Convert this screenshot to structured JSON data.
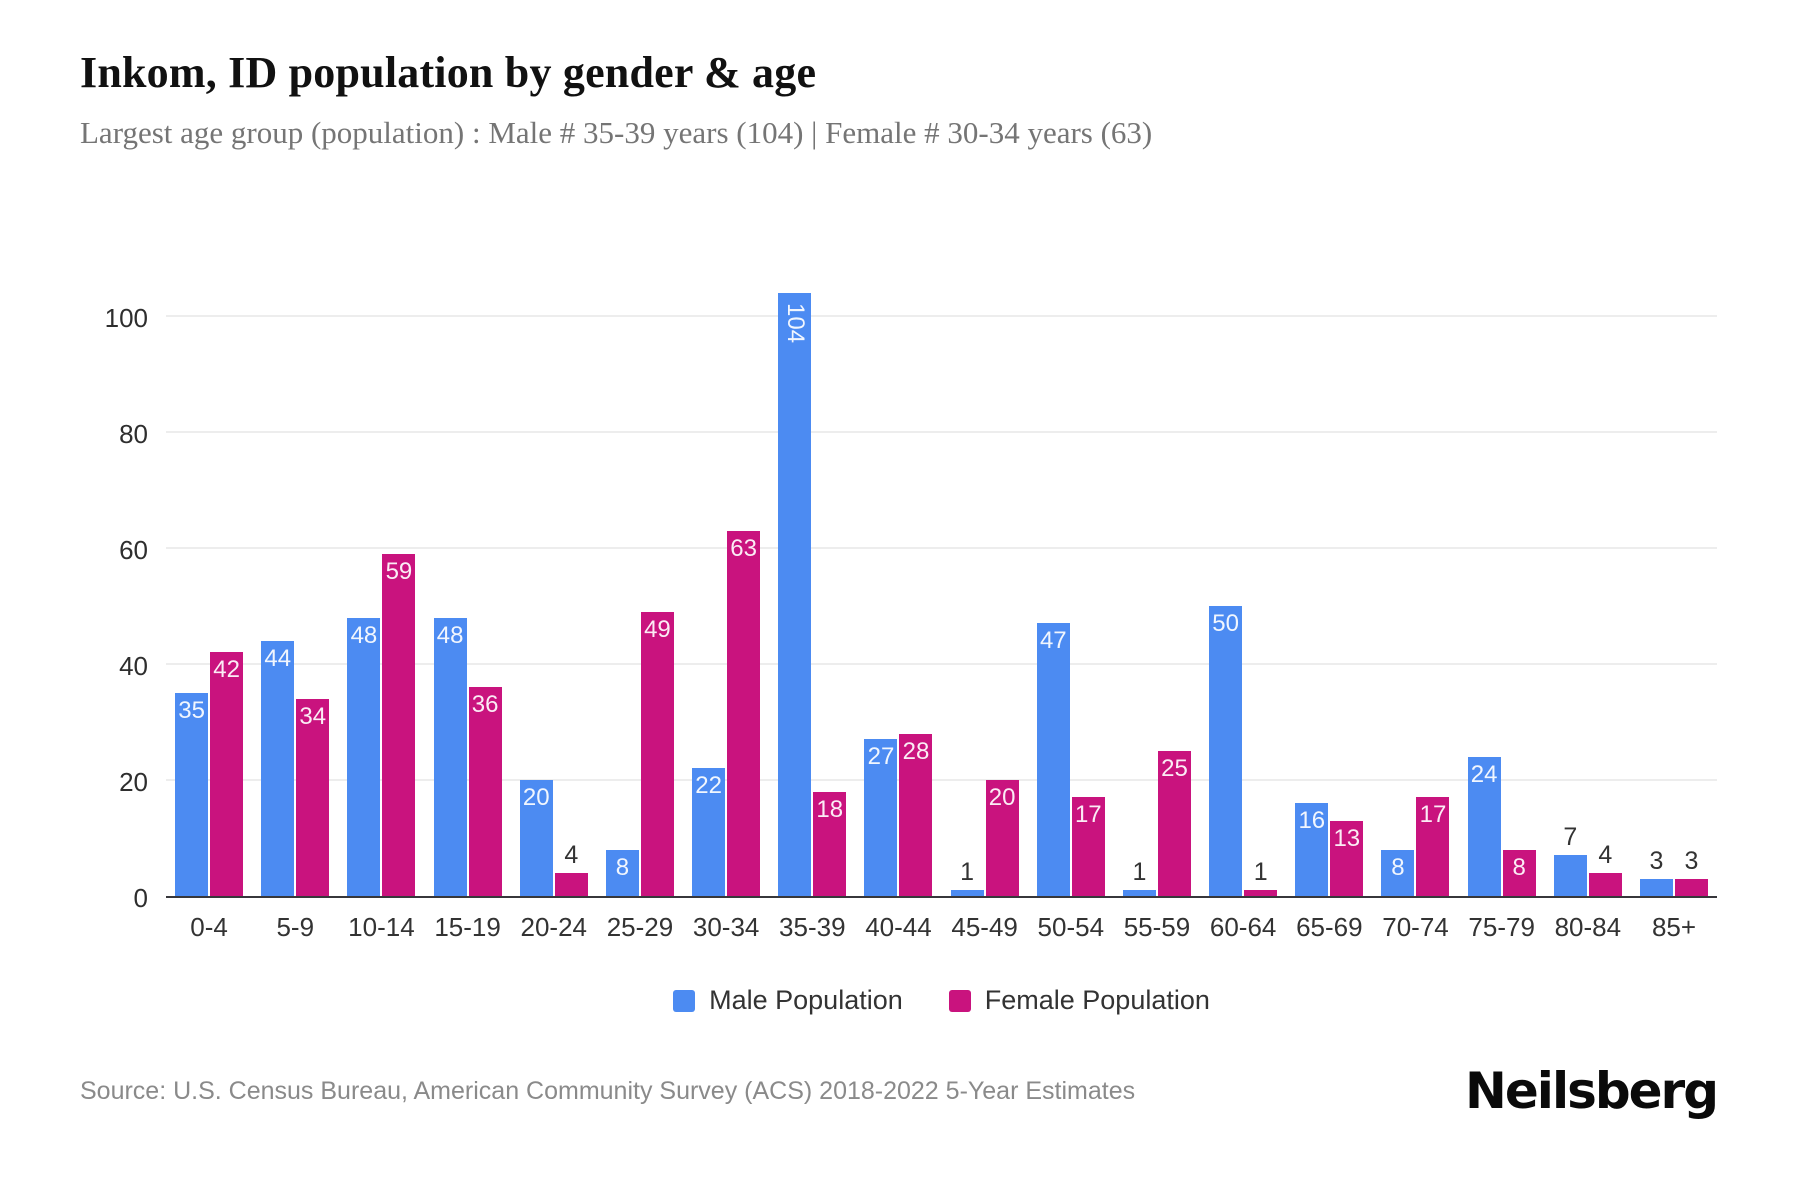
{
  "header": {
    "title": "Inkom, ID population by gender & age",
    "subtitle": "Largest age group (population) : Male # 35-39 years (104) | Female # 30-34 years (63)"
  },
  "chart_data": {
    "type": "bar",
    "title": "Inkom, ID population by gender & age",
    "categories": [
      "0-4",
      "5-9",
      "10-14",
      "15-19",
      "20-24",
      "25-29",
      "30-34",
      "35-39",
      "40-44",
      "45-49",
      "50-54",
      "55-59",
      "60-64",
      "65-69",
      "70-74",
      "75-79",
      "80-84",
      "85+"
    ],
    "series": [
      {
        "name": "Male Population",
        "color": "#4C8BF2",
        "values": [
          35,
          44,
          48,
          48,
          20,
          8,
          22,
          104,
          27,
          1,
          47,
          1,
          50,
          16,
          8,
          24,
          7,
          3
        ]
      },
      {
        "name": "Female Population",
        "color": "#C9137E",
        "values": [
          42,
          34,
          59,
          36,
          4,
          49,
          63,
          18,
          28,
          20,
          17,
          25,
          1,
          13,
          17,
          8,
          4,
          3
        ]
      }
    ],
    "xlabel": "",
    "ylabel": "",
    "ylim": [
      0,
      110
    ],
    "yticks": [
      0,
      20,
      40,
      60,
      80,
      100
    ],
    "grid": "horizontal",
    "legend_position": "bottom",
    "bar_label_inside_min": 8,
    "bar_label_vertical_min": 100
  },
  "colors": {
    "male": "#4C8BF2",
    "female": "#C9137E",
    "gridline": "#ededed",
    "axis": "#37373b",
    "tick_text": "#333333",
    "subtitle_text": "#757575",
    "source_text": "#8a8a8a"
  },
  "footer": {
    "source": "Source: U.S. Census Bureau, American Community Survey (ACS) 2018-2022 5-Year Estimates",
    "brand": "Neilsberg"
  }
}
